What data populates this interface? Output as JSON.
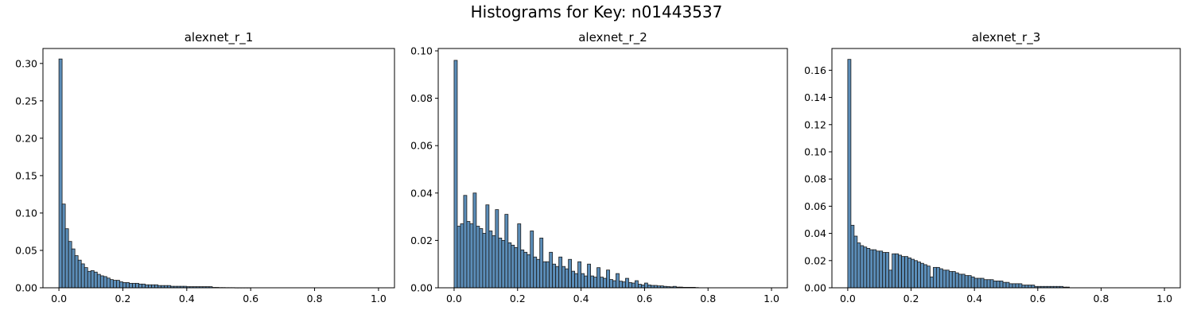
{
  "figure": {
    "suptitle": "Histograms for Key: n01443537"
  },
  "colors": {
    "bar_fill": "#5b8db8",
    "bar_edge": "#1a1a1a",
    "axis": "#000000"
  },
  "chart_data": [
    {
      "type": "bar",
      "title": "alexnet_r_1",
      "xlim": [
        -0.05,
        1.05
      ],
      "ylim": [
        0,
        0.32
      ],
      "xticks": [
        0.0,
        0.2,
        0.4,
        0.6,
        0.8,
        1.0
      ],
      "xtick_labels": [
        "0.0",
        "0.2",
        "0.4",
        "0.6",
        "0.8",
        "1.0"
      ],
      "yticks": [
        0.0,
        0.05,
        0.1,
        0.15,
        0.2,
        0.25,
        0.3
      ],
      "ytick_labels": [
        "0.00",
        "0.05",
        "0.10",
        "0.15",
        "0.20",
        "0.25",
        "0.30"
      ],
      "bin_edges_range": [
        0,
        1
      ],
      "values": [
        0.306,
        0.112,
        0.079,
        0.062,
        0.052,
        0.043,
        0.037,
        0.032,
        0.027,
        0.022,
        0.023,
        0.021,
        0.018,
        0.016,
        0.015,
        0.013,
        0.011,
        0.01,
        0.01,
        0.008,
        0.007,
        0.007,
        0.006,
        0.006,
        0.006,
        0.005,
        0.005,
        0.004,
        0.004,
        0.004,
        0.004,
        0.003,
        0.003,
        0.003,
        0.003,
        0.002,
        0.002,
        0.002,
        0.002,
        0.002,
        0.0015,
        0.0015,
        0.0015,
        0.0015,
        0.0015,
        0.0015,
        0.0015,
        0.0015,
        0.0005,
        0.0005,
        0.0003,
        0.0003,
        0.0002,
        0.0002,
        0.0002,
        0.0001,
        0.0001,
        0.0001,
        0.0001,
        0.0001,
        0,
        0,
        0,
        0,
        0,
        0,
        0,
        0,
        0,
        0,
        0,
        0,
        0,
        0,
        0,
        0,
        0,
        0,
        0,
        0,
        0,
        0,
        0,
        0,
        0,
        0,
        0,
        0,
        0,
        0,
        0,
        0,
        0,
        0,
        0,
        0,
        0,
        0,
        0,
        0
      ]
    },
    {
      "type": "bar",
      "title": "alexnet_r_2",
      "xlim": [
        -0.05,
        1.05
      ],
      "ylim": [
        0,
        0.101
      ],
      "xticks": [
        0.0,
        0.2,
        0.4,
        0.6,
        0.8,
        1.0
      ],
      "xtick_labels": [
        "0.0",
        "0.2",
        "0.4",
        "0.6",
        "0.8",
        "1.0"
      ],
      "yticks": [
        0.0,
        0.02,
        0.04,
        0.06,
        0.08,
        0.1
      ],
      "ytick_labels": [
        "0.00",
        "0.02",
        "0.04",
        "0.06",
        "0.08",
        "0.10"
      ],
      "bin_edges_range": [
        0,
        1
      ],
      "values": [
        0.096,
        0.026,
        0.027,
        0.039,
        0.028,
        0.027,
        0.04,
        0.026,
        0.025,
        0.023,
        0.035,
        0.024,
        0.022,
        0.033,
        0.021,
        0.02,
        0.031,
        0.019,
        0.018,
        0.017,
        0.027,
        0.016,
        0.015,
        0.014,
        0.024,
        0.013,
        0.012,
        0.021,
        0.011,
        0.011,
        0.015,
        0.01,
        0.009,
        0.013,
        0.009,
        0.008,
        0.012,
        0.007,
        0.006,
        0.011,
        0.006,
        0.005,
        0.01,
        0.005,
        0.0045,
        0.0085,
        0.0045,
        0.004,
        0.0075,
        0.0035,
        0.003,
        0.006,
        0.0028,
        0.0025,
        0.004,
        0.0022,
        0.002,
        0.003,
        0.0015,
        0.0012,
        0.002,
        0.0012,
        0.001,
        0.001,
        0.0008,
        0.0008,
        0.0006,
        0.0005,
        0.0004,
        0.0006,
        0.0003,
        0.0003,
        0.0002,
        0.0002,
        0.0002,
        0.0002,
        0.0001,
        0,
        0,
        0,
        0,
        0,
        0,
        0,
        0,
        0,
        0,
        0,
        0,
        0,
        0,
        0,
        0,
        0,
        0,
        0,
        0,
        0,
        0,
        0
      ]
    },
    {
      "type": "bar",
      "title": "alexnet_r_3",
      "xlim": [
        -0.05,
        1.05
      ],
      "ylim": [
        0,
        0.176
      ],
      "xticks": [
        0.0,
        0.2,
        0.4,
        0.6,
        0.8,
        1.0
      ],
      "xtick_labels": [
        "0.0",
        "0.2",
        "0.4",
        "0.6",
        "0.8",
        "1.0"
      ],
      "yticks": [
        0.0,
        0.02,
        0.04,
        0.06,
        0.08,
        0.1,
        0.12,
        0.14,
        0.16
      ],
      "ytick_labels": [
        "0.00",
        "0.02",
        "0.04",
        "0.06",
        "0.08",
        "0.10",
        "0.12",
        "0.14",
        "0.16"
      ],
      "bin_edges_range": [
        0,
        1
      ],
      "values": [
        0.168,
        0.046,
        0.038,
        0.033,
        0.031,
        0.03,
        0.029,
        0.028,
        0.028,
        0.027,
        0.027,
        0.026,
        0.026,
        0.013,
        0.025,
        0.025,
        0.024,
        0.023,
        0.023,
        0.022,
        0.021,
        0.02,
        0.019,
        0.018,
        0.017,
        0.016,
        0.008,
        0.015,
        0.015,
        0.014,
        0.013,
        0.013,
        0.012,
        0.012,
        0.011,
        0.01,
        0.01,
        0.009,
        0.009,
        0.008,
        0.007,
        0.007,
        0.007,
        0.006,
        0.006,
        0.006,
        0.005,
        0.005,
        0.005,
        0.004,
        0.004,
        0.003,
        0.003,
        0.003,
        0.003,
        0.002,
        0.002,
        0.002,
        0.002,
        0.001,
        0.001,
        0.001,
        0.001,
        0.001,
        0.001,
        0.001,
        0.001,
        0.001,
        0.0005,
        0.0005,
        0,
        0,
        0,
        0,
        0,
        0,
        0,
        0,
        0,
        0,
        0,
        0,
        0,
        0,
        0,
        0,
        0,
        0,
        0,
        0,
        0,
        0,
        0,
        0,
        0,
        0,
        0,
        0,
        0,
        0
      ]
    }
  ]
}
